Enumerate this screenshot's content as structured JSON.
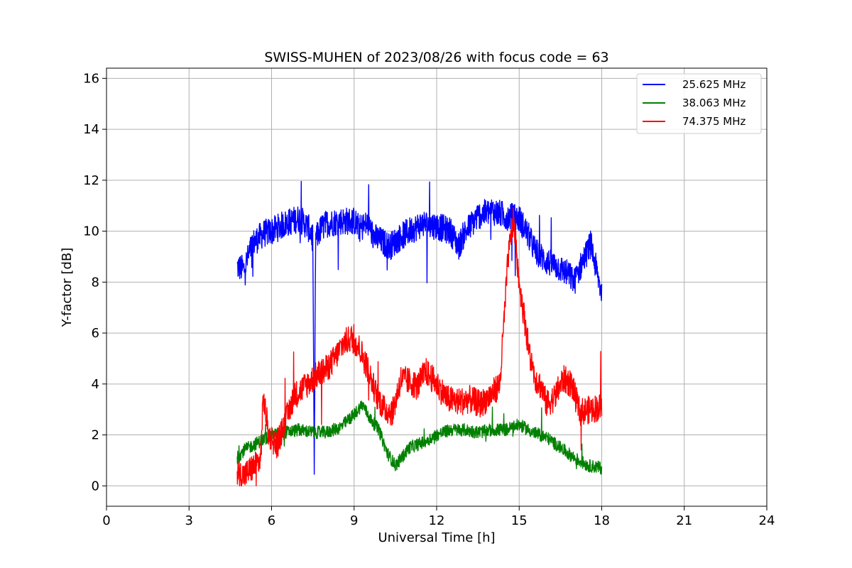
{
  "chart_data": {
    "type": "line",
    "title": "SWISS-MUHEN of 2023/08/26 with focus code = 63",
    "xlabel": "Universal Time [h]",
    "ylabel": "Y-factor [dB]",
    "xlim": [
      0,
      24
    ],
    "ylim": [
      -0.8,
      16.4
    ],
    "xticks": [
      0,
      3,
      6,
      9,
      12,
      15,
      18,
      21,
      24
    ],
    "yticks": [
      0,
      2,
      4,
      6,
      8,
      10,
      12,
      14,
      16
    ],
    "grid": true,
    "legend_position": "top-right",
    "series": [
      {
        "name": "25.625 MHz",
        "color": "#0000ff",
        "noise": 0.55,
        "x": [
          4.75,
          5.0,
          5.3,
          5.7,
          6.0,
          6.5,
          7.0,
          7.3,
          7.5,
          7.55,
          7.6,
          7.8,
          8.0,
          8.5,
          9.0,
          9.2,
          9.5,
          9.7,
          10.0,
          10.3,
          10.6,
          11.0,
          11.5,
          12.0,
          12.5,
          12.8,
          13.0,
          13.5,
          14.0,
          14.5,
          15.0,
          15.3,
          15.6,
          16.0,
          16.4,
          16.8,
          17.0,
          17.3,
          17.6,
          17.9,
          18.0
        ],
        "y": [
          8.6,
          8.5,
          9.5,
          9.9,
          10.0,
          10.3,
          10.5,
          10.2,
          9.8,
          0.0,
          9.7,
          10.1,
          10.3,
          10.4,
          10.4,
          10.1,
          10.3,
          9.8,
          9.6,
          9.4,
          9.7,
          10.0,
          10.3,
          10.2,
          10.0,
          9.4,
          9.9,
          10.6,
          10.8,
          10.6,
          10.5,
          9.9,
          9.2,
          8.8,
          8.6,
          8.3,
          8.0,
          8.8,
          9.5,
          8.0,
          7.6
        ]
      },
      {
        "name": "38.063 MHz",
        "color": "#008000",
        "noise": 0.25,
        "x": [
          4.75,
          5.0,
          5.5,
          6.0,
          6.5,
          7.0,
          7.5,
          8.0,
          8.5,
          9.0,
          9.3,
          9.6,
          9.9,
          10.2,
          10.5,
          10.8,
          11.0,
          11.5,
          12.0,
          12.5,
          13.0,
          13.5,
          14.0,
          14.5,
          15.0,
          15.5,
          16.0,
          16.5,
          17.0,
          17.5,
          18.0
        ],
        "y": [
          1.1,
          1.4,
          1.7,
          2.0,
          2.1,
          2.2,
          2.1,
          2.1,
          2.3,
          2.8,
          3.2,
          2.6,
          2.2,
          1.3,
          0.8,
          1.2,
          1.5,
          1.7,
          2.0,
          2.2,
          2.2,
          2.1,
          2.2,
          2.2,
          2.4,
          2.1,
          1.9,
          1.5,
          1.1,
          0.8,
          0.7
        ]
      },
      {
        "name": "74.375 MHz",
        "color": "#ff0000",
        "noise": 0.55,
        "x": [
          4.75,
          5.0,
          5.4,
          5.6,
          5.7,
          5.9,
          6.2,
          6.5,
          6.8,
          7.2,
          7.6,
          8.0,
          8.3,
          8.6,
          8.9,
          9.2,
          9.5,
          9.8,
          10.1,
          10.4,
          10.7,
          11.0,
          11.3,
          11.6,
          12.0,
          12.4,
          12.8,
          13.2,
          13.6,
          14.0,
          14.3,
          14.6,
          14.8,
          15.0,
          15.2,
          15.4,
          15.6,
          15.8,
          16.0,
          16.3,
          16.6,
          16.9,
          17.2,
          17.6,
          18.0
        ],
        "y": [
          0.5,
          0.4,
          0.8,
          1.0,
          3.5,
          2.0,
          1.6,
          2.5,
          3.5,
          3.9,
          4.3,
          4.6,
          5.0,
          5.6,
          5.8,
          5.4,
          4.6,
          3.6,
          3.0,
          2.9,
          4.2,
          4.1,
          3.9,
          4.5,
          4.0,
          3.4,
          3.3,
          3.4,
          3.2,
          3.6,
          4.0,
          9.0,
          10.5,
          8.0,
          6.5,
          5.0,
          4.2,
          3.9,
          3.2,
          3.5,
          4.2,
          4.0,
          2.9,
          3.0,
          3.1
        ]
      }
    ]
  }
}
